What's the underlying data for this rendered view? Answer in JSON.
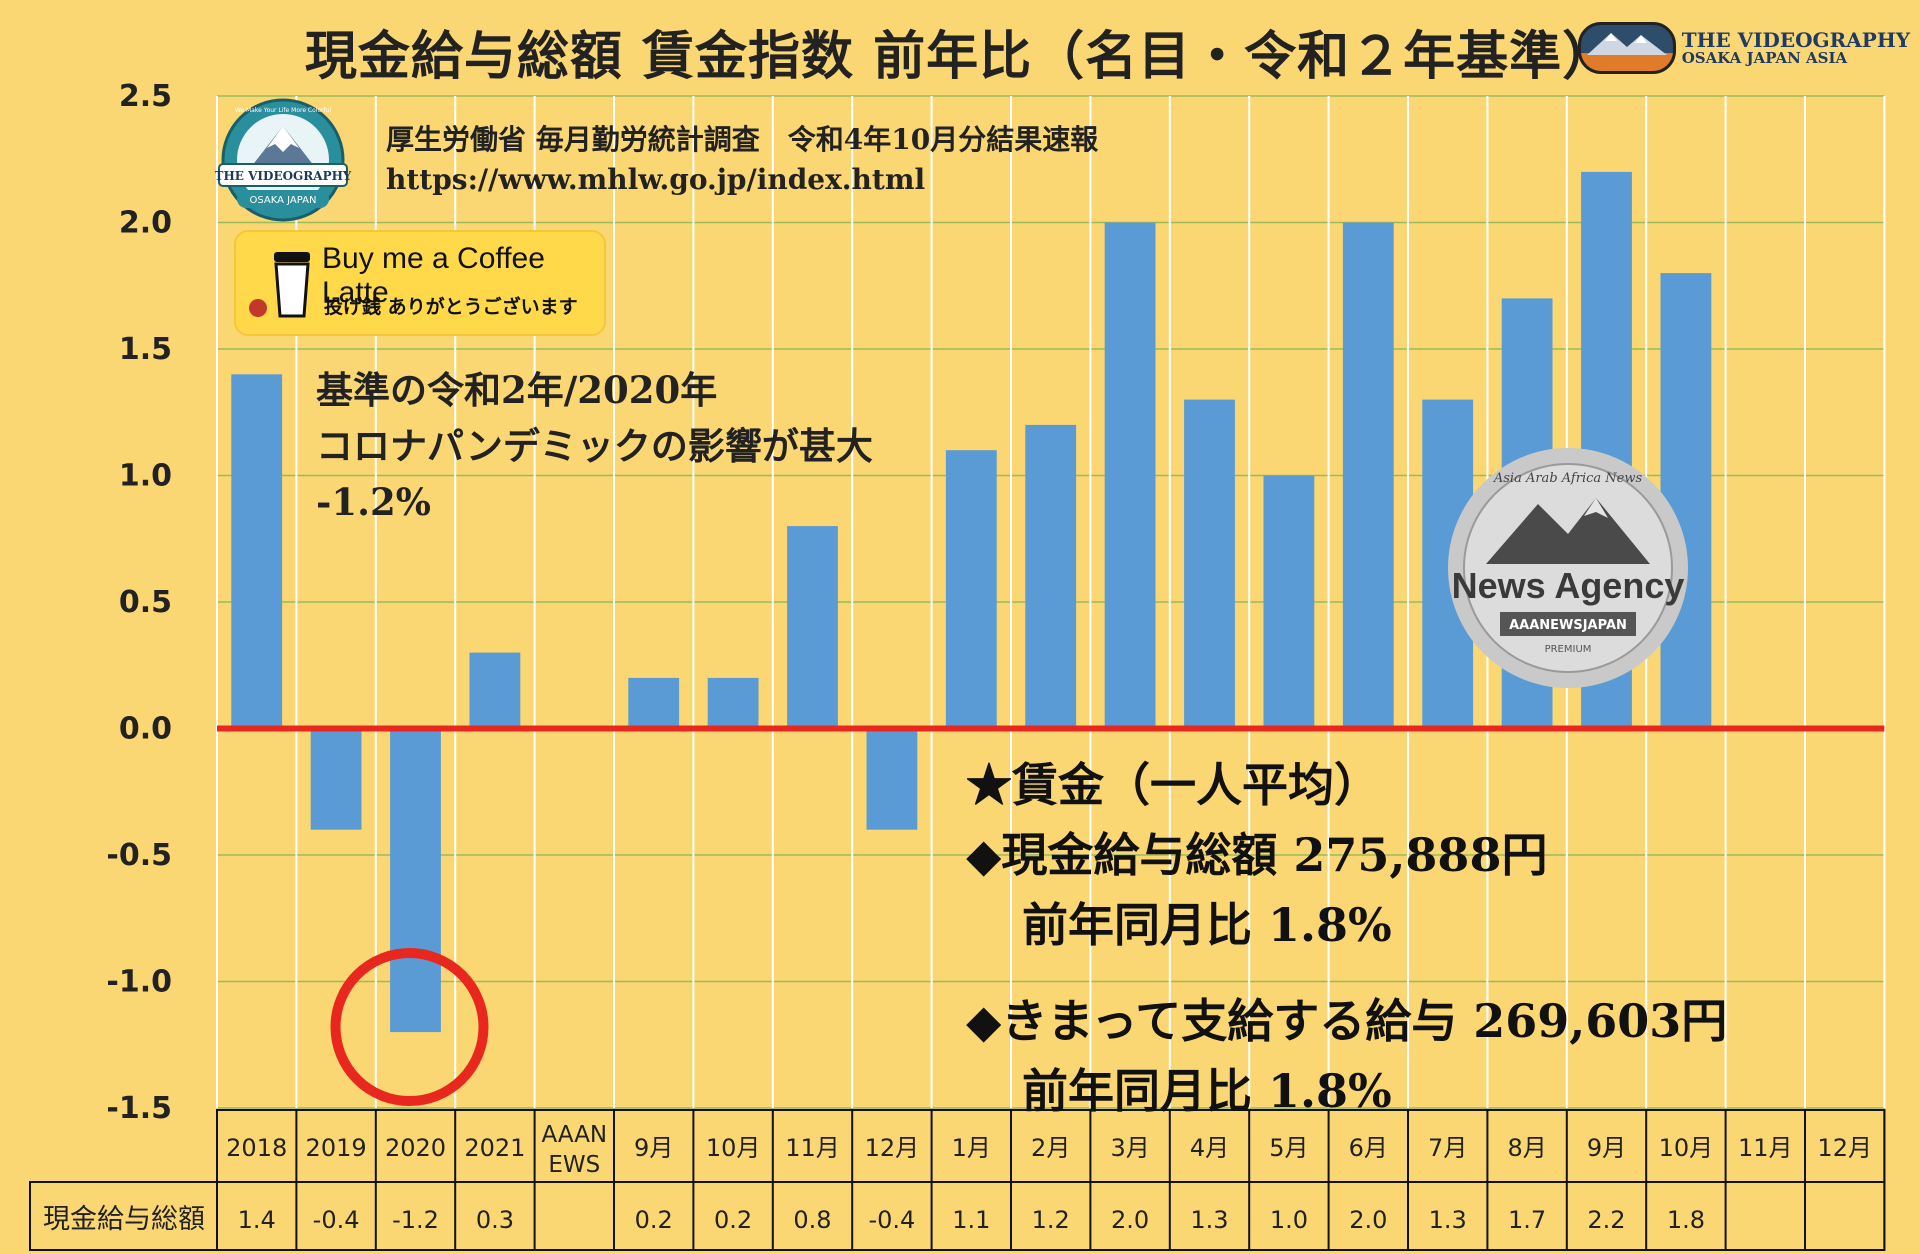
{
  "title": "現金給与総額 賃金指数 前年比（名目・令和２年基準）",
  "brand_top_right": {
    "line1": "THE VIDEOGRAPHY",
    "line2": "OSAKA JAPAN ASIA"
  },
  "logo_top_left": {
    "arc_text": "We Make Your Life More Colorful",
    "name": "THE VIDEOGRAPHY",
    "sub": "OSAKA JAPAN",
    "icon": "mountain-logo-icon"
  },
  "source": {
    "line1": "厚生労働省 毎月勤労統計調査　令和4年10月分結果速報",
    "line2": "https://www.mhlw.go.jp/index.html"
  },
  "coffee": {
    "line1": "Buy me a Coffee Latte",
    "line2": "投げ銭 ありがとうございます",
    "icon": "coffee-cup-icon"
  },
  "note": {
    "line1": "基準の令和2年/2020年",
    "line2": "コロナパンデミックの影響が甚大",
    "line3": "-1.2%"
  },
  "summary": {
    "heading": "★賃金（一人平均）",
    "item1": "◆現金給与総額 275,888円",
    "item1_sub": "前年同月比 1.8%",
    "item2": "◆きまって支給する給与 269,603円",
    "item2_sub": "前年同月比 1.8%"
  },
  "news_badge": {
    "arc_text": "Asia Arab Africa News",
    "name": "News Agency",
    "ribbon": "AAANEWSJAPAN",
    "sub": "PREMIUM",
    "icon": "news-agency-badge-icon"
  },
  "colors": {
    "background": "#fbd774",
    "bar": "#5b9bd5",
    "zero_line": "#e8281e",
    "grid": "#9bbb59",
    "highlight_circle": "#e8281e"
  },
  "chart_data": {
    "type": "bar",
    "categories": [
      "2018",
      "2019",
      "2020",
      "2021",
      "AAAN\nEWS",
      "9月",
      "10月",
      "11月",
      "12月",
      "1月",
      "2月",
      "3月",
      "4月",
      "5月",
      "6月",
      "7月",
      "8月",
      "9月",
      "10月",
      "11月",
      "12月"
    ],
    "series": [
      {
        "name": "現金給与総額",
        "values": [
          1.4,
          -0.4,
          -1.2,
          0.3,
          null,
          0.2,
          0.2,
          0.8,
          -0.4,
          1.1,
          1.2,
          2.0,
          1.3,
          1.0,
          2.0,
          1.3,
          1.7,
          2.2,
          1.8,
          null,
          null
        ]
      }
    ],
    "table_labels": [
      "1.4",
      "-0.4",
      "-1.2",
      "0.3",
      "",
      "0.2",
      "0.2",
      "0.8",
      "-0.4",
      "1.1",
      "1.2",
      "2.0",
      "1.3",
      "1.0",
      "2.0",
      "1.3",
      "1.7",
      "2.2",
      "1.8",
      "",
      ""
    ],
    "row_header": "現金給与総額",
    "yticks": [
      "2.5",
      "2.0",
      "1.5",
      "1.0",
      "0.5",
      "0.0",
      "-0.5",
      "-1.0",
      "-1.5"
    ],
    "ylim": [
      -1.5,
      2.5
    ],
    "grid": true,
    "highlight_category": "2020"
  }
}
